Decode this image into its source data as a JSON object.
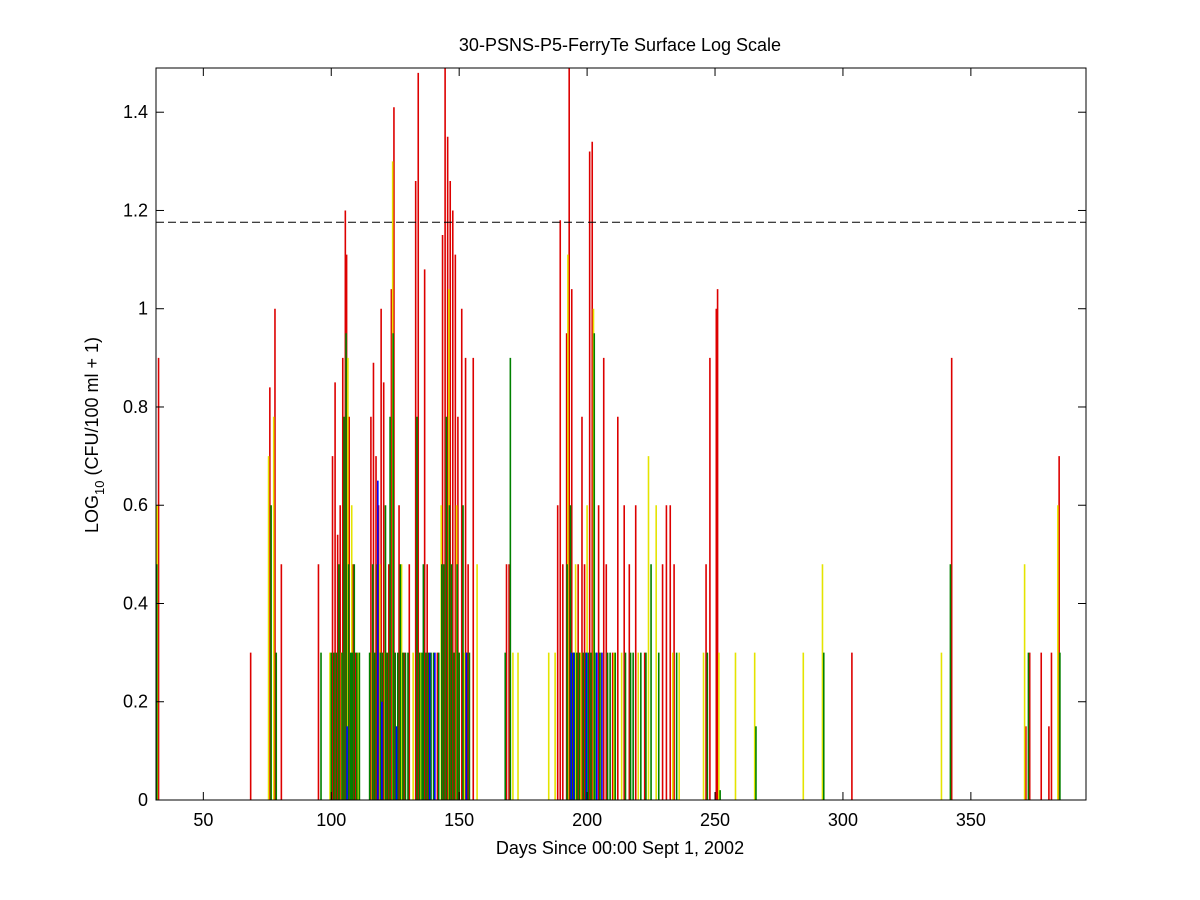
{
  "chart_data": {
    "type": "bar",
    "title": "30-PSNS-P5-FerryTe Surface Log Scale",
    "xlabel": "Days Since 00:00 Sept 1, 2002",
    "ylabel": {
      "main": "LOG",
      "subscript": "10",
      "rest": " (CFU/100 ml + 1)"
    },
    "xlim": [
      31.5,
      395
    ],
    "ylim": [
      0,
      1.49
    ],
    "xticks": [
      50,
      100,
      150,
      200,
      250,
      300,
      350
    ],
    "yticks": [
      0,
      0.2,
      0.4,
      0.6,
      0.8,
      1,
      1.2,
      1.4
    ],
    "ytick_labels": [
      "0",
      "0.2",
      "0.4",
      "0.6",
      "0.8",
      "1",
      "1.2",
      "1.4"
    ],
    "threshold": {
      "value": 1.176,
      "style": "dashed",
      "color": "#000000"
    },
    "grid": false,
    "series": [
      {
        "color": "#dd0000",
        "points": [
          [
            32.5,
            0.9
          ],
          [
            68.5,
            0.3
          ],
          [
            76,
            0.84
          ],
          [
            78,
            1.0
          ],
          [
            80.5,
            0.48
          ],
          [
            95,
            0.48
          ],
          [
            100.5,
            0.7
          ],
          [
            101.5,
            0.85
          ],
          [
            102.5,
            0.54
          ],
          [
            103.5,
            0.6
          ],
          [
            104.5,
            0.9
          ],
          [
            105.5,
            1.2
          ],
          [
            106,
            1.11
          ],
          [
            107,
            0.78
          ],
          [
            108.5,
            0.48
          ],
          [
            109.5,
            0.3
          ],
          [
            115.5,
            0.78
          ],
          [
            116.5,
            0.89
          ],
          [
            117.5,
            0.7
          ],
          [
            118.5,
            0.6
          ],
          [
            119.5,
            1.0
          ],
          [
            120.5,
            0.85
          ],
          [
            121.5,
            0.3
          ],
          [
            122.5,
            0.48
          ],
          [
            123.5,
            1.04
          ],
          [
            124.5,
            1.41
          ],
          [
            126.5,
            0.6
          ],
          [
            128.5,
            0.3
          ],
          [
            130.5,
            0.48
          ],
          [
            133,
            1.26
          ],
          [
            134,
            1.48
          ],
          [
            136.5,
            1.08
          ],
          [
            137.5,
            0.48
          ],
          [
            141.5,
            0.3
          ],
          [
            143.5,
            1.15
          ],
          [
            144.5,
            1.49
          ],
          [
            145.5,
            1.35
          ],
          [
            146.5,
            1.26
          ],
          [
            147.5,
            1.2
          ],
          [
            148.5,
            1.11
          ],
          [
            149.5,
            0.78
          ],
          [
            151,
            1.0
          ],
          [
            152.5,
            0.9
          ],
          [
            153.5,
            0.48
          ],
          [
            155.5,
            0.9
          ],
          [
            168.5,
            0.48
          ],
          [
            169.5,
            0.48
          ],
          [
            188.5,
            0.6
          ],
          [
            189.5,
            1.18
          ],
          [
            190.5,
            0.48
          ],
          [
            192,
            0.95
          ],
          [
            193,
            1.49
          ],
          [
            194,
            1.04
          ],
          [
            196.5,
            0.48
          ],
          [
            198,
            0.78
          ],
          [
            199,
            0.48
          ],
          [
            201,
            1.32
          ],
          [
            202,
            1.34
          ],
          [
            204.5,
            0.6
          ],
          [
            206.5,
            0.9
          ],
          [
            207.5,
            0.48
          ],
          [
            210,
            0.3
          ],
          [
            212,
            0.78
          ],
          [
            214.5,
            0.6
          ],
          [
            216.5,
            0.48
          ],
          [
            219,
            0.6
          ],
          [
            222.5,
            0.3
          ],
          [
            229.5,
            0.48
          ],
          [
            231,
            0.6
          ],
          [
            232.5,
            0.6
          ],
          [
            234,
            0.48
          ],
          [
            246.5,
            0.48
          ],
          [
            248,
            0.9
          ],
          [
            250.5,
            1.0
          ],
          [
            251,
            1.04
          ],
          [
            303.5,
            0.3
          ],
          [
            342.5,
            0.9
          ],
          [
            371.5,
            0.15
          ],
          [
            373,
            0.3
          ],
          [
            377.5,
            0.3
          ],
          [
            380.5,
            0.15
          ],
          [
            381.5,
            0.3
          ],
          [
            384.5,
            0.7
          ]
        ]
      },
      {
        "color": "#e4e400",
        "points": [
          [
            32,
            0.6
          ],
          [
            75.5,
            0.7
          ],
          [
            77.5,
            0.78
          ],
          [
            99.5,
            0.3
          ],
          [
            104,
            0.3
          ],
          [
            106.5,
            0.9
          ],
          [
            108,
            0.6
          ],
          [
            110.5,
            0.3
          ],
          [
            116,
            0.3
          ],
          [
            119,
            0.48
          ],
          [
            121,
            0.3
          ],
          [
            124,
            1.3
          ],
          [
            127.5,
            0.48
          ],
          [
            132,
            0.3
          ],
          [
            135,
            0.3
          ],
          [
            143,
            0.6
          ],
          [
            146,
            1.04
          ],
          [
            149,
            0.6
          ],
          [
            152,
            0.3
          ],
          [
            157,
            0.48
          ],
          [
            171,
            0.3
          ],
          [
            173,
            0.3
          ],
          [
            185,
            0.3
          ],
          [
            187.5,
            0.3
          ],
          [
            192.5,
            1.11
          ],
          [
            195.5,
            0.48
          ],
          [
            197.5,
            0.3
          ],
          [
            200,
            0.6
          ],
          [
            202.5,
            1.0
          ],
          [
            205.5,
            0.3
          ],
          [
            210.5,
            0.3
          ],
          [
            213.5,
            0.3
          ],
          [
            220,
            0.3
          ],
          [
            224,
            0.7
          ],
          [
            227,
            0.6
          ],
          [
            233.5,
            0.3
          ],
          [
            236,
            0.3
          ],
          [
            245.5,
            0.3
          ],
          [
            251.5,
            0.3
          ],
          [
            258,
            0.3
          ],
          [
            265.5,
            0.3
          ],
          [
            284.5,
            0.3
          ],
          [
            292,
            0.48
          ],
          [
            338.5,
            0.3
          ],
          [
            371,
            0.48
          ],
          [
            384,
            0.6
          ]
        ]
      },
      {
        "color": "#008000",
        "points": [
          [
            31.8,
            0.48
          ],
          [
            76.5,
            0.6
          ],
          [
            78.5,
            0.3
          ],
          [
            96,
            0.3
          ],
          [
            100,
            0.3
          ],
          [
            101,
            0.3
          ],
          [
            102,
            0.3
          ],
          [
            103,
            0.48
          ],
          [
            104.2,
            0.3
          ],
          [
            105,
            0.78
          ],
          [
            105.8,
            0.95
          ],
          [
            106.8,
            0.48
          ],
          [
            107.6,
            0.3
          ],
          [
            108.2,
            0.3
          ],
          [
            109,
            0.48
          ],
          [
            110,
            0.3
          ],
          [
            111,
            0.3
          ],
          [
            115,
            0.3
          ],
          [
            116.2,
            0.48
          ],
          [
            117,
            0.3
          ],
          [
            118,
            0.48
          ],
          [
            119.2,
            0.3
          ],
          [
            120,
            0.3
          ],
          [
            121.2,
            0.6
          ],
          [
            122,
            0.3
          ],
          [
            123,
            0.78
          ],
          [
            124.2,
            0.95
          ],
          [
            125,
            0.3
          ],
          [
            126,
            0.3
          ],
          [
            127,
            0.48
          ],
          [
            128,
            0.3
          ],
          [
            129,
            0.3
          ],
          [
            130,
            0.3
          ],
          [
            133.5,
            0.78
          ],
          [
            134.5,
            0.3
          ],
          [
            135.5,
            0.3
          ],
          [
            136,
            0.48
          ],
          [
            137,
            0.3
          ],
          [
            138,
            0.3
          ],
          [
            139,
            0.3
          ],
          [
            140,
            0.3
          ],
          [
            142,
            0.3
          ],
          [
            143.2,
            0.48
          ],
          [
            144,
            0.48
          ],
          [
            145,
            0.78
          ],
          [
            146.2,
            0.6
          ],
          [
            147,
            0.48
          ],
          [
            148,
            0.3
          ],
          [
            149.2,
            0.48
          ],
          [
            150,
            0.3
          ],
          [
            151.5,
            0.6
          ],
          [
            153,
            0.3
          ],
          [
            154,
            0.3
          ],
          [
            168,
            0.3
          ],
          [
            170,
            0.9
          ],
          [
            192.2,
            0.48
          ],
          [
            193.5,
            0.6
          ],
          [
            194.5,
            0.3
          ],
          [
            195,
            0.3
          ],
          [
            196,
            0.3
          ],
          [
            197,
            0.3
          ],
          [
            198.5,
            0.3
          ],
          [
            199.5,
            0.3
          ],
          [
            200.5,
            0.3
          ],
          [
            201.5,
            0.3
          ],
          [
            202.8,
            0.95
          ],
          [
            203.5,
            0.3
          ],
          [
            205,
            0.3
          ],
          [
            208,
            0.3
          ],
          [
            209,
            0.3
          ],
          [
            211,
            0.3
          ],
          [
            215,
            0.3
          ],
          [
            217,
            0.3
          ],
          [
            218,
            0.3
          ],
          [
            221,
            0.3
          ],
          [
            223,
            0.3
          ],
          [
            225,
            0.48
          ],
          [
            228,
            0.3
          ],
          [
            235,
            0.3
          ],
          [
            247,
            0.3
          ],
          [
            252,
            0.02
          ],
          [
            266,
            0.15
          ],
          [
            292.5,
            0.3
          ],
          [
            342,
            0.48
          ],
          [
            372.5,
            0.3
          ],
          [
            384.8,
            0.3
          ]
        ]
      },
      {
        "color": "#0000ff",
        "points": [
          [
            118.2,
            0.65
          ],
          [
            106.2,
            0.15
          ],
          [
            119.8,
            0.2
          ],
          [
            125.5,
            0.15
          ],
          [
            138.5,
            0.3
          ],
          [
            140.5,
            0.3
          ],
          [
            152.8,
            0.3
          ],
          [
            193.8,
            0.3
          ],
          [
            194.8,
            0.3
          ],
          [
            199.8,
            0.3
          ],
          [
            203.8,
            0.3
          ],
          [
            205.8,
            0.3
          ]
        ]
      }
    ]
  }
}
